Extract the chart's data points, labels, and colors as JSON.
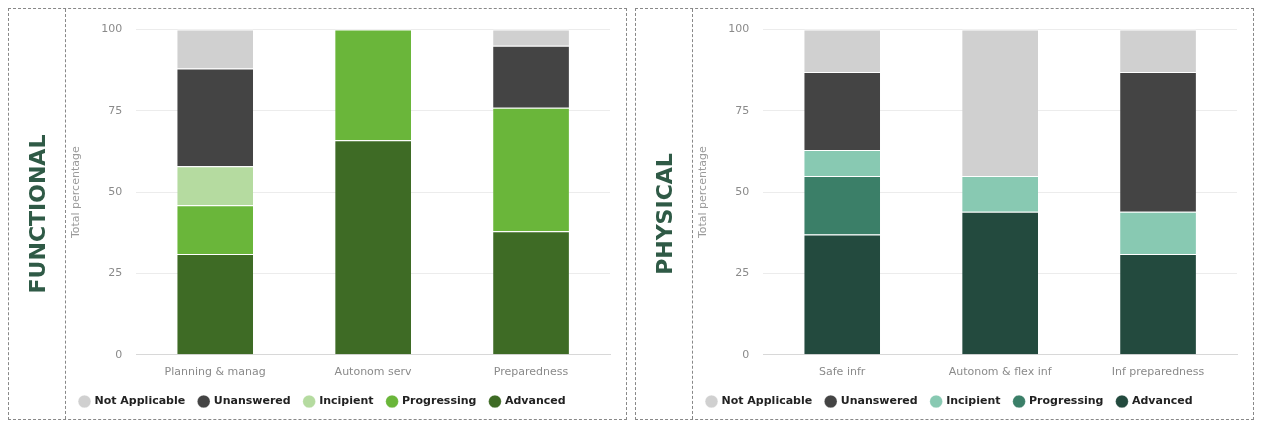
{
  "chart_data": [
    {
      "type": "bar",
      "title": "FUNCTIONAL",
      "ylabel": "Total percentage",
      "categories": [
        "Planning & manag",
        "Autonom serv",
        "Preparedness"
      ],
      "stacked": true,
      "ylim": [
        0,
        100
      ],
      "yticks": [
        0,
        25,
        50,
        75,
        100
      ],
      "grid": "y",
      "legend": "bottom",
      "series": [
        {
          "name": "Advanced",
          "color": "#3e6b25",
          "values": [
            31,
            66,
            38
          ]
        },
        {
          "name": "Progressing",
          "color": "#6ab63a",
          "values": [
            15,
            34,
            38
          ]
        },
        {
          "name": "Incipient",
          "color": "#b5dba0",
          "values": [
            12,
            0,
            0
          ]
        },
        {
          "name": "Unanswered",
          "color": "#444444",
          "values": [
            30,
            0,
            19
          ]
        },
        {
          "name": "Not Applicable",
          "color": "#d0d0d0",
          "values": [
            12,
            0,
            5
          ]
        }
      ]
    },
    {
      "type": "bar",
      "title": "PHYSICAL",
      "ylabel": "Total percentage",
      "categories": [
        "Safe infr",
        "Autonom & flex inf",
        "Inf preparedness"
      ],
      "stacked": true,
      "ylim": [
        0,
        100
      ],
      "yticks": [
        0,
        25,
        50,
        75,
        100
      ],
      "grid": "y",
      "legend": "bottom",
      "series": [
        {
          "name": "Advanced",
          "color": "#234a3e",
          "values": [
            37,
            44,
            31
          ]
        },
        {
          "name": "Progressing",
          "color": "#3b7f68",
          "values": [
            18,
            0,
            0
          ]
        },
        {
          "name": "Incipient",
          "color": "#88c9b2",
          "values": [
            8,
            11,
            13
          ]
        },
        {
          "name": "Unanswered",
          "color": "#444444",
          "values": [
            24,
            0,
            43
          ]
        },
        {
          "name": "Not Applicable",
          "color": "#d0d0d0",
          "values": [
            13,
            45,
            13
          ]
        }
      ]
    }
  ]
}
